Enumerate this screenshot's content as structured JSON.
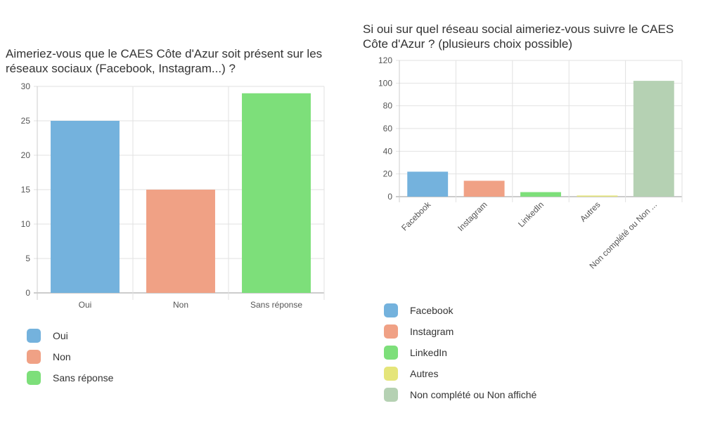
{
  "chart_data": [
    {
      "type": "bar",
      "title": "Aimeriez-vous que le CAES Côte d'Azur soit présent sur les réseaux sociaux (Facebook, Instagram...) ?",
      "categories": [
        "Oui",
        "Non",
        "Sans réponse"
      ],
      "values": [
        25,
        15,
        29
      ],
      "colors": [
        "#74b2dd",
        "#f0a185",
        "#7ddf7a"
      ],
      "ylim": [
        0,
        30
      ],
      "yticks": [
        0,
        5,
        10,
        15,
        20,
        25,
        30
      ],
      "grid": true,
      "legend": [
        "Oui",
        "Non",
        "Sans réponse"
      ],
      "legend_position": "bottom-left"
    },
    {
      "type": "bar",
      "title": "Si oui sur quel réseau social aimeriez-vous suivre le CAES Côte d'Azur ? (plusieurs choix possible)",
      "categories": [
        "Facebook",
        "Instagram",
        "LinkedIn",
        "Autres",
        "Non complété ou Non ..."
      ],
      "values": [
        22,
        14,
        4,
        1,
        102
      ],
      "colors": [
        "#74b2dd",
        "#f0a185",
        "#7ddf7a",
        "#e5e57a",
        "#b5d1b3"
      ],
      "ylim": [
        0,
        120
      ],
      "yticks": [
        0,
        20,
        40,
        60,
        80,
        100,
        120
      ],
      "grid": true,
      "legend": [
        "Facebook",
        "Instagram",
        "LinkedIn",
        "Autres",
        "Non complété ou Non affiché"
      ],
      "legend_position": "bottom-left"
    }
  ]
}
